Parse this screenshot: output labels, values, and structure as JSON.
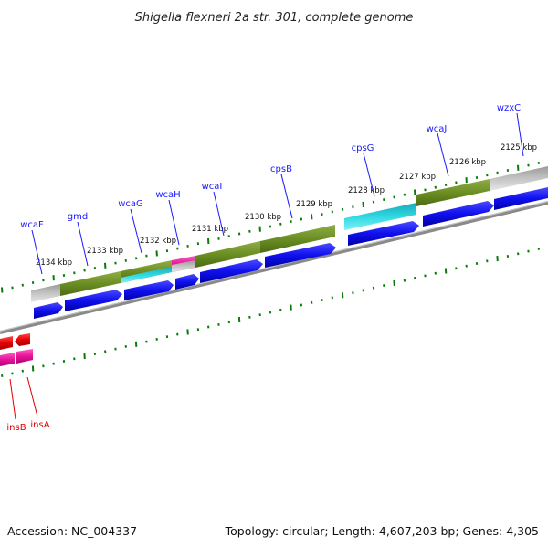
{
  "title": "Shigella flexneri 2a str. 301, complete genome",
  "footer": {
    "accession": "Accession: NC_004337",
    "info": "Topology: circular; Length: 4,607,203 bp; Genes: 4,305"
  },
  "colors": {
    "cds": "#1010ee",
    "olive": "#6b8e23",
    "cyan": "#1ec8d2",
    "gray": "#b4b4b4",
    "magenta": "#e6149b",
    "red": "#e60000",
    "tick": "#0a7a0a",
    "backbone": "#808080",
    "label_blue": "#1a1aff",
    "label_red": "#e00000"
  },
  "kbp_labels": [
    "2134 kbp",
    "2133 kbp",
    "2132 kbp",
    "2131 kbp",
    "2130 kbp",
    "2129 kbp",
    "2128 kbp",
    "2127 kbp",
    "2126 kbp",
    "2125 kbp"
  ],
  "gene_labels": [
    {
      "text": "wzxC",
      "color": "blue"
    },
    {
      "text": "wcaJ",
      "color": "blue"
    },
    {
      "text": "cpsG",
      "color": "blue"
    },
    {
      "text": "cpsB",
      "color": "blue"
    },
    {
      "text": "wcaI",
      "color": "blue"
    },
    {
      "text": "wcaH",
      "color": "blue"
    },
    {
      "text": "wcaG",
      "color": "blue"
    },
    {
      "text": "gmd",
      "color": "blue"
    },
    {
      "text": "wcaF",
      "color": "blue"
    },
    {
      "text": "insB",
      "color": "red"
    },
    {
      "text": "insA",
      "color": "red"
    }
  ]
}
